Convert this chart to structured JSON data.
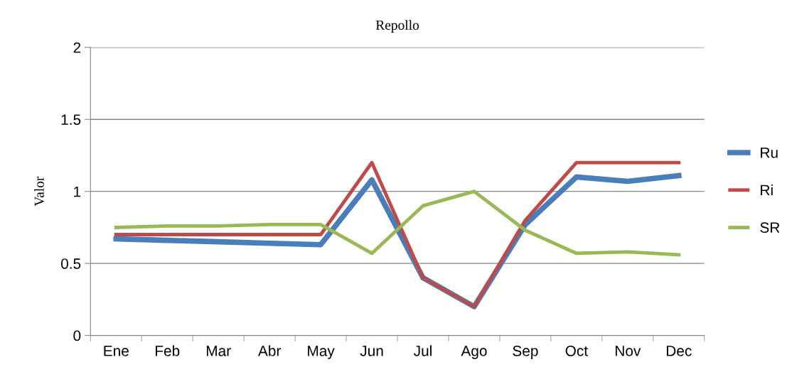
{
  "chart_data": {
    "type": "line",
    "title": "Repollo",
    "ylabel": "Valor",
    "categories": [
      "Ene",
      "Feb",
      "Mar",
      "Abr",
      "May",
      "Jun",
      "Jul",
      "Ago",
      "Sep",
      "Oct",
      "Nov",
      "Dec"
    ],
    "series": [
      {
        "name": "Ru",
        "color": "#4a7ebb",
        "values": [
          0.67,
          0.66,
          0.65,
          0.64,
          0.63,
          1.08,
          0.4,
          0.2,
          0.77,
          1.1,
          1.07,
          1.11
        ]
      },
      {
        "name": "Ri",
        "color": "#be4b48",
        "values": [
          0.7,
          0.7,
          0.7,
          0.7,
          0.7,
          1.2,
          0.4,
          0.2,
          0.8,
          1.2,
          1.2,
          1.2
        ]
      },
      {
        "name": "SR",
        "color": "#98b954",
        "values": [
          0.75,
          0.76,
          0.76,
          0.77,
          0.77,
          0.57,
          0.9,
          1.0,
          0.73,
          0.57,
          0.58,
          0.56
        ]
      }
    ],
    "ylim": [
      0,
      2
    ],
    "yticks": [
      0,
      0.5,
      1,
      1.5,
      2
    ],
    "grid": "y",
    "legend": "right",
    "marker": "none",
    "line_style": "solid"
  }
}
